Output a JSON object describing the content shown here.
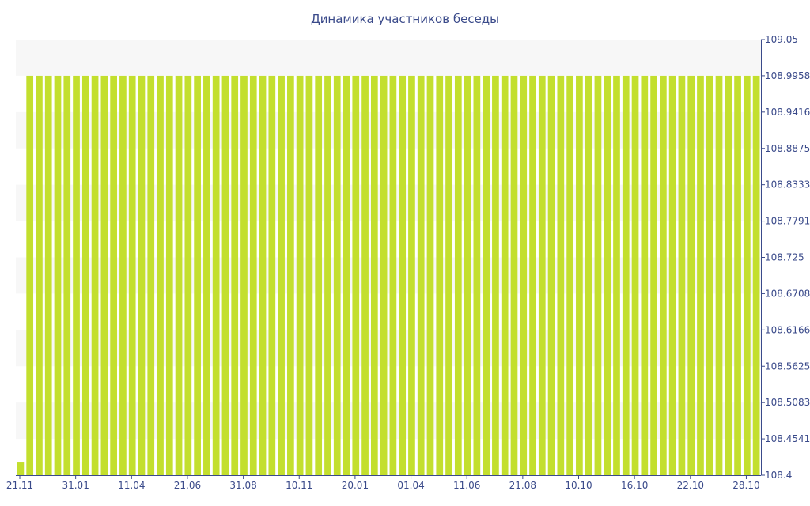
{
  "chart_data": {
    "type": "bar",
    "title": "Динамика участников беседы",
    "xlabel": "",
    "ylabel": "",
    "ylim": [
      108.4,
      109.05
    ],
    "y_ticks": [
      "109.05",
      "108.9958",
      "108.9416",
      "108.8875",
      "108.8333",
      "108.7791",
      "108.725",
      "108.6708",
      "108.6166",
      "108.5625",
      "108.5083",
      "108.4541",
      "108.4"
    ],
    "x_tick_labels": [
      "21.11",
      "31.01",
      "11.04",
      "21.06",
      "31.08",
      "10.11",
      "20.01",
      "01.04",
      "11.06",
      "21.08",
      "10.10",
      "16.10",
      "22.10",
      "28.10"
    ],
    "x_tick_bar_index": [
      0,
      6,
      12,
      18,
      24,
      30,
      36,
      42,
      48,
      54,
      60,
      66,
      72,
      78
    ],
    "bar_count": 80,
    "first_value": 108.42,
    "other_values": 108.9958,
    "values": [],
    "grid": false,
    "band_stripes": true,
    "y_axis_position": "right",
    "colors": {
      "bar": "#c3df2e",
      "axis": "#3a4a8a",
      "band": "#f7f7f7",
      "text": "#3a4a8a"
    }
  }
}
